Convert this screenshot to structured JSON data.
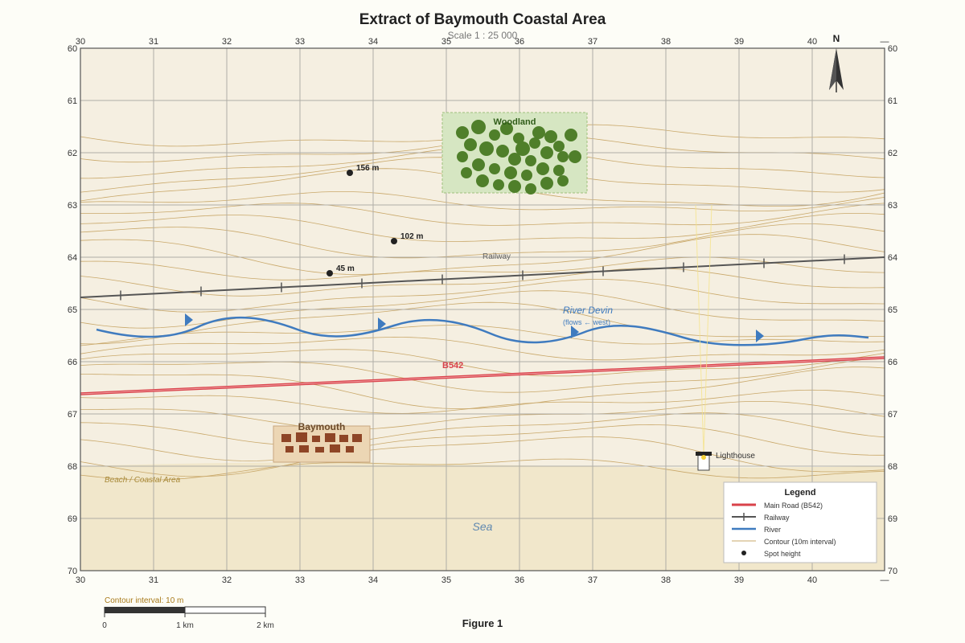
{
  "title": "Extract of Baymouth Coastal Area",
  "scale": "Scale 1 : 25 000",
  "figure_caption": "Figure 1",
  "north_label": "N",
  "grid": {
    "eastings": [
      "30",
      "31",
      "32",
      "33",
      "34",
      "35",
      "36",
      "37",
      "38",
      "39",
      "40"
    ],
    "northings": [
      "60",
      "61",
      "62",
      "63",
      "64",
      "65",
      "66",
      "67",
      "68",
      "69",
      "70"
    ],
    "dash": "—"
  },
  "spot_heights": [
    {
      "label": "156 m",
      "value_m": 156
    },
    {
      "label": "102 m",
      "value_m": 102
    },
    {
      "label": "45 m",
      "value_m": 45
    }
  ],
  "features": {
    "woodland": "Woodland",
    "railway": "Railway",
    "river_name": "River Devin",
    "river_note": "(flows ← west)",
    "road_label": "B542",
    "town": "Baymouth",
    "lighthouse": "Lighthouse",
    "beach": "Beach / Coastal Area",
    "sea": "Sea"
  },
  "legend": {
    "title": "Legend",
    "items": [
      {
        "label": "Main Road (B542)",
        "symbol": "road"
      },
      {
        "label": "Railway",
        "symbol": "railway"
      },
      {
        "label": "River",
        "symbol": "river"
      },
      {
        "label": "Contour (10m interval)",
        "symbol": "contour"
      },
      {
        "label": "Spot height",
        "symbol": "spot"
      }
    ]
  },
  "scale_bar": {
    "note": "Contour interval: 10 m",
    "ticks": [
      "0",
      "1 km",
      "2 km"
    ]
  },
  "colors": {
    "land": "#f5efe1",
    "beach": "#f1e7cb",
    "grid": "#b0ada6",
    "contour": "#c9a86a",
    "road": "#d9424a",
    "railway": "#555555",
    "river": "#3f7bbf",
    "woodland_fill": "#d6e6c2",
    "tree": "#4f7f2a",
    "town_fill": "#ecd6b4",
    "building": "#8e4526",
    "beach_text": "#a88a3a",
    "sea_text": "#5f88b0"
  }
}
